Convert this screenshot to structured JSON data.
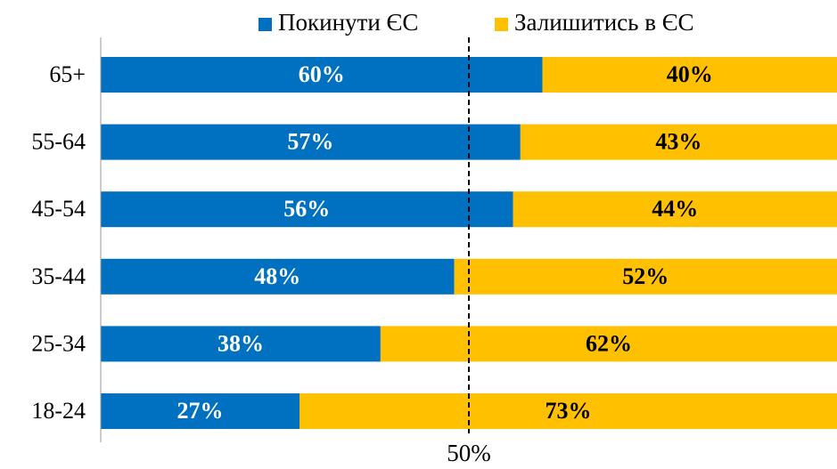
{
  "chart_data": {
    "type": "stacked-bar-horizontal",
    "categories": [
      "65+",
      "55-64",
      "45-54",
      "35-44",
      "25-34",
      "18-24"
    ],
    "series": [
      {
        "name": "Покинути ЄС",
        "color": "#0070c0",
        "label_color": "#ffffff",
        "values": [
          60,
          57,
          56,
          48,
          38,
          27
        ],
        "value_labels": [
          "60%",
          "57%",
          "56%",
          "48%",
          "38%",
          "27%"
        ]
      },
      {
        "name": "Залишитись в ЄС",
        "color": "#ffc000",
        "label_color": "#000000",
        "values": [
          40,
          43,
          44,
          52,
          62,
          73
        ],
        "value_labels": [
          "40%",
          "43%",
          "44%",
          "52%",
          "62%",
          "73%"
        ]
      }
    ],
    "xlim": [
      0,
      100
    ],
    "reference_line": {
      "value": 50,
      "label": "50%"
    },
    "legend": "top"
  }
}
